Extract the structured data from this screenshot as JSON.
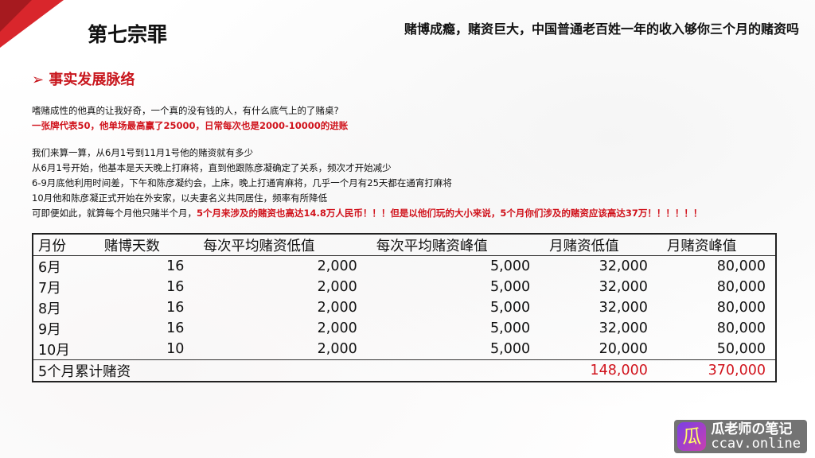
{
  "header": {
    "title": "第七宗罪",
    "subtitle": "赌博成瘾，赌资巨大，中国普通老百姓一年的收入够你三个月的赌资吗"
  },
  "section": {
    "bullet": "➢",
    "title": "事实发展脉络"
  },
  "body": {
    "line1": "嗜赌成性的他真的让我好奇，一个真的没有钱的人，有什么底气上的了赌桌?",
    "line2": "一张牌代表50，他单场最高赢了25000，日常每次也是2000-10000的进账",
    "line3": "我们来算一算，从6月1号到11月1号他的赌资就有多少",
    "line4": "从6月1号开始，他基本是天天晚上打麻将，直到他跟陈彦凝确定了关系，频次才开始减少",
    "line5": "6-9月底他利用时间差，下午和陈彦凝约会，上床，晚上打通宵麻将，几乎一个月有25天都在通宵打麻将",
    "line6": "10月他和陈彦凝正式开始在外安家，以夫妻名义共同居住，频率有所降低",
    "line7a": "可即便如此，就算每个月他只赌半个月，",
    "line7b": "5个月来涉及的赌资也高达14.8万人民币！！！但是以他们玩的大小来说，5个月你们涉及的赌资应该高达37万！！！！！！"
  },
  "table": {
    "headers": [
      "月份",
      "赌博天数",
      "每次平均赌资低值",
      "每次平均赌资峰值",
      "月赌资低值",
      "月赌资峰值"
    ],
    "rows": [
      [
        "6月",
        "16",
        "2,000",
        "5,000",
        "32,000",
        "80,000"
      ],
      [
        "7月",
        "16",
        "2,000",
        "5,000",
        "32,000",
        "80,000"
      ],
      [
        "8月",
        "16",
        "2,000",
        "5,000",
        "32,000",
        "80,000"
      ],
      [
        "9月",
        "16",
        "2,000",
        "5,000",
        "32,000",
        "80,000"
      ],
      [
        "10月",
        "10",
        "2,000",
        "5,000",
        "20,000",
        "50,000"
      ]
    ],
    "total": {
      "label": "5个月累计赌资",
      "low": "148,000",
      "high": "370,000"
    }
  },
  "watermark": {
    "name": "瓜老师の笔记",
    "site": "ccav.online"
  },
  "colors": {
    "accent": "#d0121b"
  }
}
